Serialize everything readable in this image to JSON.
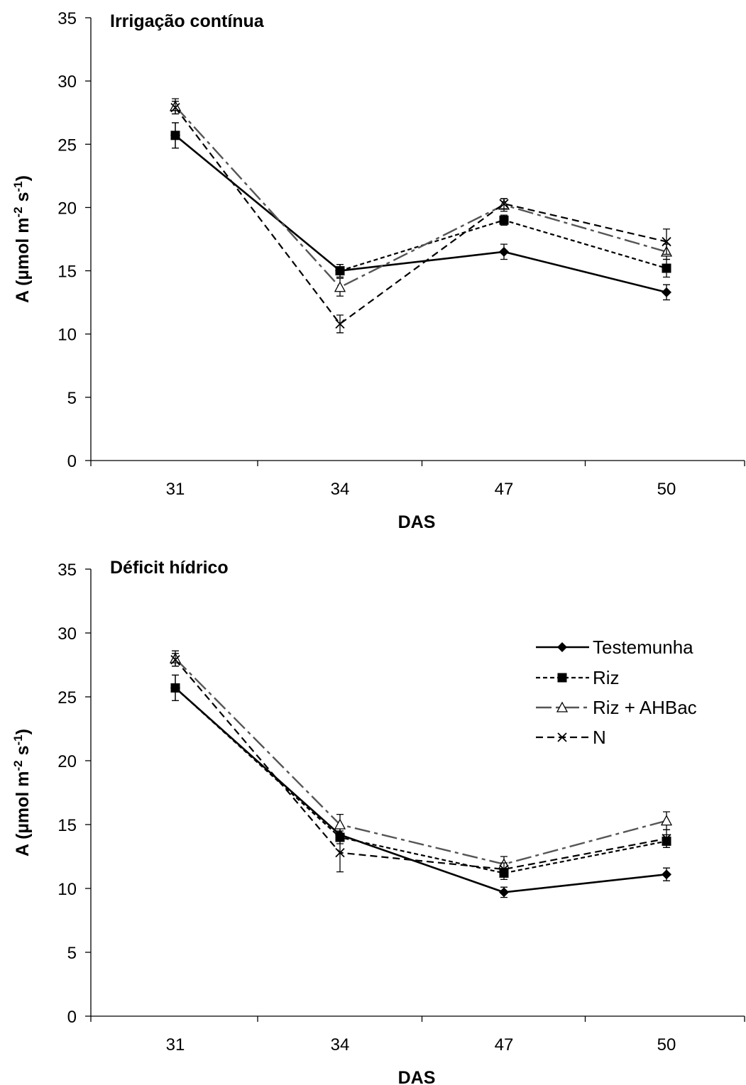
{
  "chart_data": [
    {
      "type": "line",
      "title": "Irrigação contínua",
      "xlabel": "DAS",
      "ylabel": "A (µmol m-2 s-1)",
      "ylabel_parts": {
        "a": "A (µmol m",
        "b": "-2",
        "c": " s",
        "d": "-1",
        "e": ")"
      },
      "categories": [
        "31",
        "34",
        "47",
        "50"
      ],
      "ylim": [
        0,
        35
      ],
      "yticks": [
        "0",
        "5",
        "10",
        "15",
        "20",
        "25",
        "30",
        "35"
      ],
      "grid": false,
      "series": [
        {
          "name": "Testemunha",
          "values": [
            25.7,
            15.0,
            16.5,
            13.3
          ],
          "errors": [
            1.0,
            0.5,
            0.6,
            0.6
          ]
        },
        {
          "name": "Riz",
          "values": [
            25.7,
            15.0,
            19.0,
            15.2
          ],
          "errors": [
            1.0,
            0.5,
            0.4,
            0.7
          ]
        },
        {
          "name": "Riz + AHBac",
          "values": [
            28.0,
            13.7,
            20.2,
            16.5
          ],
          "errors": [
            0.6,
            0.7,
            0.5,
            0.6
          ]
        },
        {
          "name": "N",
          "values": [
            27.9,
            10.8,
            20.3,
            17.3
          ],
          "errors": [
            0.5,
            0.7,
            0.4,
            1.0
          ]
        }
      ]
    },
    {
      "type": "line",
      "title": "Déficit hídrico",
      "xlabel": "DAS",
      "ylabel": "A (µmol m-2 s-1)",
      "ylabel_parts": {
        "a": "A (µmol m",
        "b": "-2",
        "c": " s",
        "d": "-1",
        "e": ")"
      },
      "categories": [
        "31",
        "34",
        "47",
        "50"
      ],
      "ylim": [
        0,
        35
      ],
      "yticks": [
        "0",
        "5",
        "10",
        "15",
        "20",
        "25",
        "30",
        "35"
      ],
      "grid": false,
      "legend_position": "top-right",
      "series": [
        {
          "name": "Testemunha",
          "values": [
            25.7,
            14.2,
            9.7,
            11.1
          ],
          "errors": [
            1.0,
            0.5,
            0.4,
            0.5
          ]
        },
        {
          "name": "Riz",
          "values": [
            25.7,
            14.0,
            11.2,
            13.7
          ],
          "errors": [
            1.0,
            0.5,
            0.5,
            0.5
          ]
        },
        {
          "name": "Riz + AHBac",
          "values": [
            28.0,
            15.0,
            11.9,
            15.3
          ],
          "errors": [
            0.6,
            0.8,
            0.6,
            0.7
          ]
        },
        {
          "name": "N",
          "values": [
            27.9,
            12.8,
            11.5,
            13.9
          ],
          "errors": [
            0.5,
            1.5,
            0.5,
            0.7
          ]
        }
      ]
    }
  ],
  "series_styles": [
    {
      "marker": "diamond",
      "line": "solid",
      "color": "#000000"
    },
    {
      "marker": "square",
      "line": "dotted",
      "color": "#000000"
    },
    {
      "marker": "triangle",
      "line": "dashdot",
      "color": "#555555"
    },
    {
      "marker": "x",
      "line": "dashed",
      "color": "#000000"
    }
  ]
}
